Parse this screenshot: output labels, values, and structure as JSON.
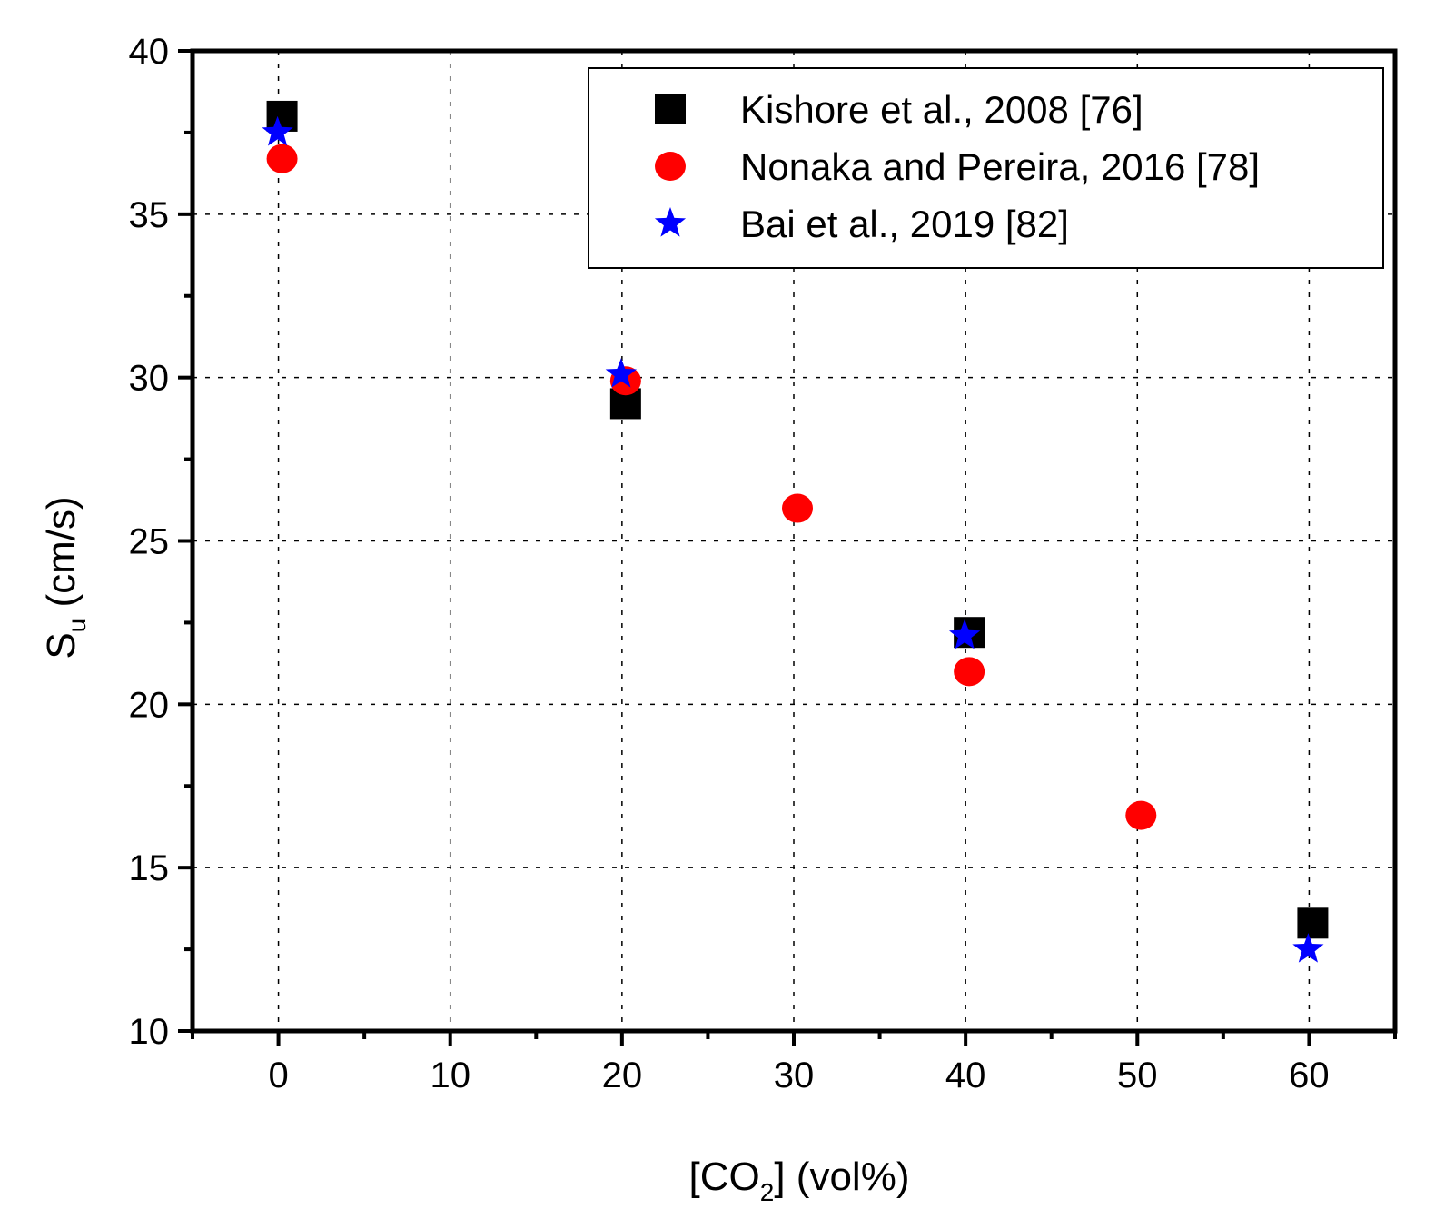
{
  "chart_data": {
    "type": "scatter",
    "xlabel": {
      "prefix": "[CO",
      "sub": "2",
      "suffix": "] (vol%)"
    },
    "ylabel": {
      "main": "S",
      "sub": "u",
      "suffix": " (cm/s)"
    },
    "xlim": [
      -5,
      65
    ],
    "ylim": [
      10,
      40
    ],
    "xticks": [
      0,
      10,
      20,
      30,
      40,
      50,
      60
    ],
    "yticks": [
      10,
      15,
      20,
      25,
      30,
      35,
      40
    ],
    "grid": true,
    "legend_position": "top-right",
    "series": [
      {
        "name": "Kishore et al., 2008 [76]",
        "marker": "square",
        "color": "#000000",
        "points": [
          [
            0,
            38.0
          ],
          [
            20,
            29.2
          ],
          [
            40,
            22.2
          ],
          [
            60,
            13.3
          ]
        ]
      },
      {
        "name": "Nonaka and Pereira, 2016 [78]",
        "marker": "circle",
        "color": "#ff0000",
        "points": [
          [
            0,
            36.7
          ],
          [
            20,
            29.9
          ],
          [
            30,
            26.0
          ],
          [
            40,
            21.0
          ],
          [
            50,
            16.6
          ]
        ]
      },
      {
        "name": "Bai et al., 2019 [82]",
        "marker": "star",
        "color": "#0000ff",
        "points": [
          [
            0,
            37.5
          ],
          [
            20,
            30.1
          ],
          [
            40,
            22.1
          ],
          [
            60,
            12.5
          ]
        ]
      }
    ]
  }
}
